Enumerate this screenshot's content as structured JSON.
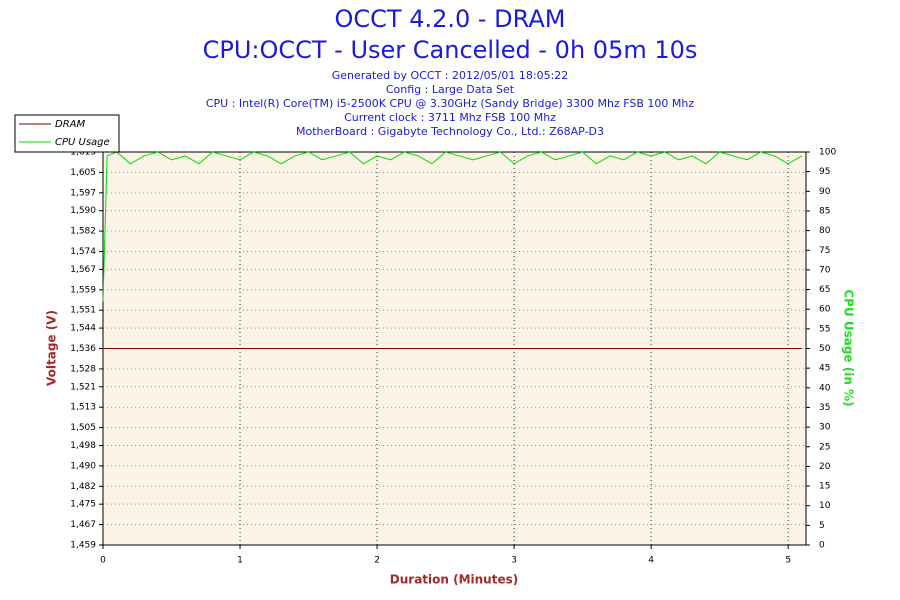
{
  "chart_data": {
    "type": "line",
    "title": [
      "OCCT 4.2.0 - DRAM",
      "CPU:OCCT - User Cancelled - 0h 05m 10s"
    ],
    "subtitle": [
      "Generated by OCCT : 2012/05/01 18:05:22",
      "Config : Large Data Set",
      "CPU : Intel(R) Core(TM) i5-2500K CPU @ 3.30GHz (Sandy Bridge) 3300 Mhz FSB 100 Mhz",
      "Current clock : 3711 Mhz FSB 100 Mhz",
      "MotherBoard : Gigabyte Technology Co., Ltd.: Z68AP-D3"
    ],
    "xlabel": "Duration (Minutes)",
    "ylabel": "Voltage (V)",
    "y2label": "CPU Usage (in %)",
    "xlim": [
      0,
      5.13
    ],
    "xticks": [
      0,
      1,
      2,
      3,
      4,
      5
    ],
    "ylim": [
      1.459,
      1.613
    ],
    "yticks": [
      {
        "value": 1.459,
        "label": "1,459"
      },
      {
        "value": 1.467,
        "label": "1,467"
      },
      {
        "value": 1.475,
        "label": "1,475"
      },
      {
        "value": 1.482,
        "label": "1,482"
      },
      {
        "value": 1.49,
        "label": "1,490"
      },
      {
        "value": 1.498,
        "label": "1,498"
      },
      {
        "value": 1.505,
        "label": "1,505"
      },
      {
        "value": 1.513,
        "label": "1,513"
      },
      {
        "value": 1.521,
        "label": "1,521"
      },
      {
        "value": 1.528,
        "label": "1,528"
      },
      {
        "value": 1.536,
        "label": "1,536"
      },
      {
        "value": 1.544,
        "label": "1,544"
      },
      {
        "value": 1.551,
        "label": "1,551"
      },
      {
        "value": 1.559,
        "label": "1,559"
      },
      {
        "value": 1.567,
        "label": "1,567"
      },
      {
        "value": 1.574,
        "label": "1,574"
      },
      {
        "value": 1.582,
        "label": "1,582"
      },
      {
        "value": 1.59,
        "label": "1,590"
      },
      {
        "value": 1.597,
        "label": "1,597"
      },
      {
        "value": 1.605,
        "label": "1,605"
      },
      {
        "value": 1.613,
        "label": "1,613"
      }
    ],
    "y2lim": [
      0,
      100
    ],
    "y2ticks": [
      0,
      5,
      10,
      15,
      20,
      25,
      30,
      35,
      40,
      45,
      50,
      55,
      60,
      65,
      70,
      75,
      80,
      85,
      90,
      95,
      100
    ],
    "grid": true,
    "legend": "top-left",
    "series": [
      {
        "name": "DRAM",
        "color": "#800000",
        "x": [
          0,
          5.1
        ],
        "values": [
          1.536,
          1.536
        ]
      },
      {
        "name": "CPU Usage",
        "color": "#00dd00",
        "axis": "y2",
        "x": [
          0,
          0.03,
          0.1,
          0.2,
          0.3,
          0.4,
          0.5,
          0.6,
          0.7,
          0.8,
          0.9,
          1,
          1.1,
          1.2,
          1.3,
          1.4,
          1.5,
          1.6,
          1.7,
          1.8,
          1.9,
          2,
          2.1,
          2.2,
          2.3,
          2.4,
          2.5,
          2.6,
          2.7,
          2.8,
          2.9,
          3,
          3.1,
          3.2,
          3.3,
          3.4,
          3.5,
          3.6,
          3.7,
          3.8,
          3.9,
          4,
          4.1,
          4.2,
          4.3,
          4.4,
          4.5,
          4.6,
          4.7,
          4.8,
          4.9,
          5,
          5.1
        ],
        "values": [
          62,
          99,
          100,
          97,
          99,
          100,
          98,
          99,
          97,
          100,
          99,
          98,
          100,
          99,
          97,
          99,
          100,
          98,
          99,
          100,
          97,
          99,
          98,
          100,
          99,
          97,
          100,
          99,
          98,
          99,
          100,
          97,
          99,
          100,
          98,
          99,
          100,
          97,
          99,
          98,
          100,
          99,
          100,
          98,
          99,
          97,
          100,
          99,
          98,
          100,
          99,
          97,
          99
        ]
      }
    ]
  }
}
